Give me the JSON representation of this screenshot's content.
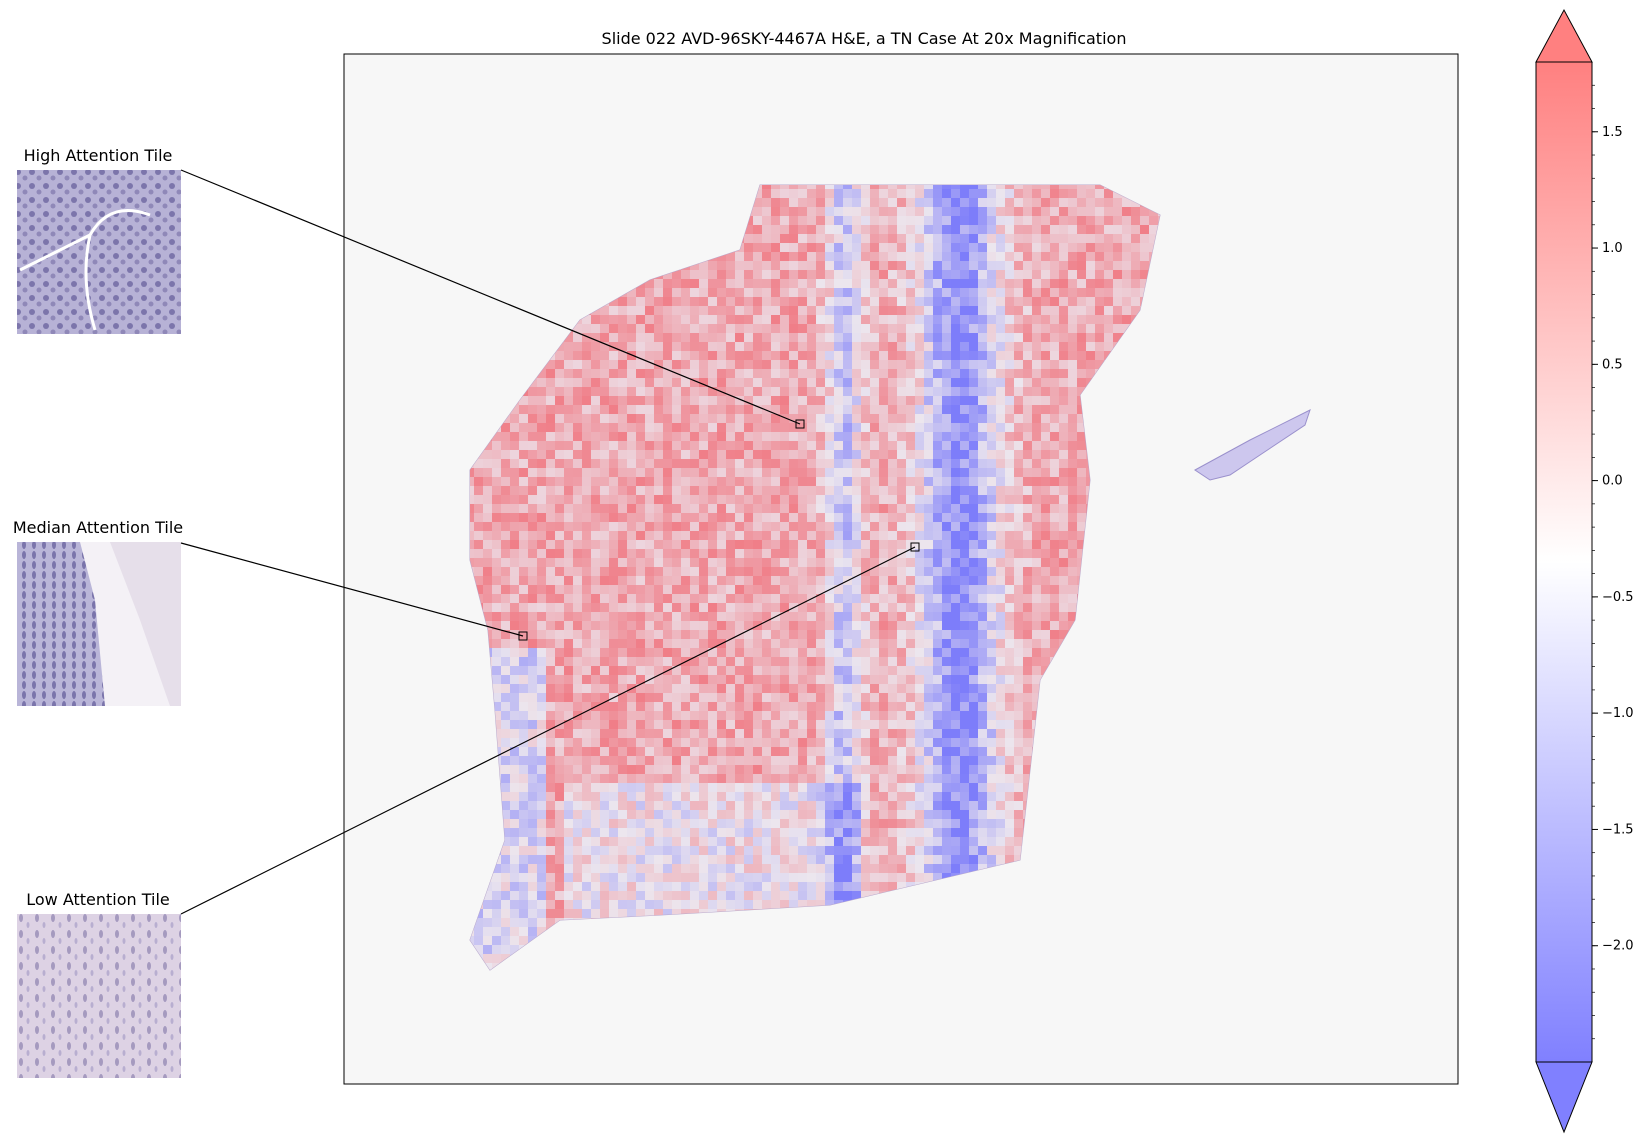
{
  "chart_data": {
    "type": "heatmap",
    "title": "Slide 022 AVD-96SKY-4467A H&E, a TN Case At 20x Magnification",
    "colorbar": {
      "colormap": "bwr",
      "colors": {
        "low": "#8080ff",
        "mid": "#ffffff",
        "high": "#ff8080"
      },
      "min": -2.5,
      "max": 1.8,
      "ticks": [
        {
          "value": 1.5,
          "label": "1.5"
        },
        {
          "value": 1.0,
          "label": "1.0"
        },
        {
          "value": 0.5,
          "label": "0.5"
        },
        {
          "value": 0.0,
          "label": "0.0"
        },
        {
          "value": -0.5,
          "label": "−0.5"
        },
        {
          "value": -1.0,
          "label": "−1.0"
        },
        {
          "value": -1.5,
          "label": "−1.5"
        },
        {
          "value": -2.0,
          "label": "−2.0"
        }
      ],
      "extend": "both"
    },
    "insets": [
      {
        "title": "High Attention Tile",
        "tone": "dense-purple"
      },
      {
        "title": "Median Attention Tile",
        "tone": "epithelium-edge"
      },
      {
        "title": "Low Attention Tile",
        "tone": "pale-stroma"
      }
    ],
    "grid": false
  }
}
